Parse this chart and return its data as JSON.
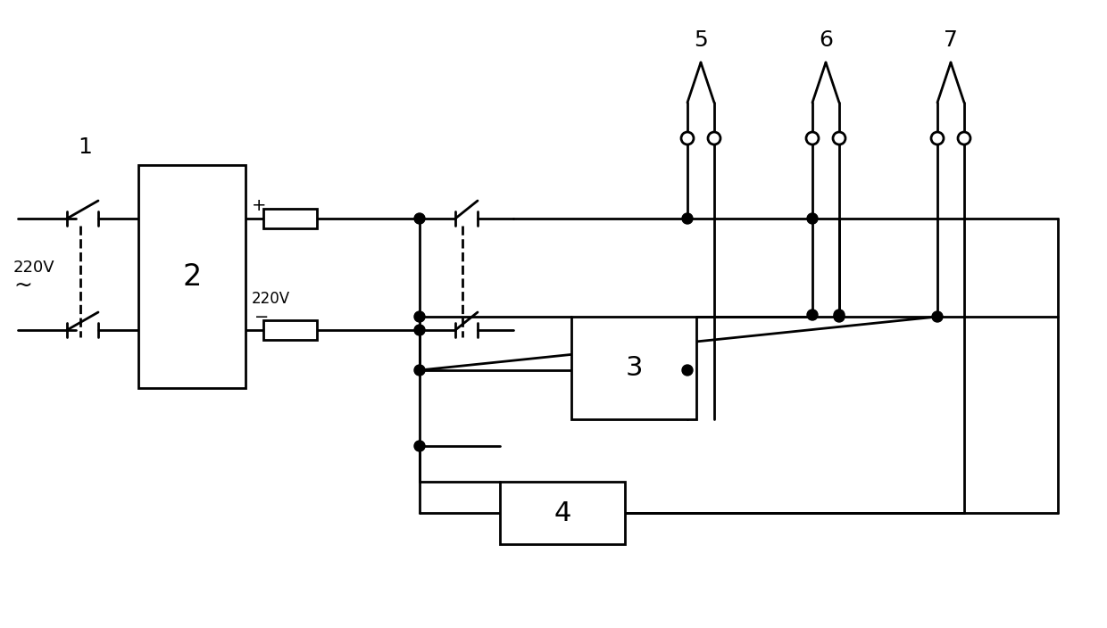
{
  "bg_color": "#ffffff",
  "line_color": "#000000",
  "lw": 2.0,
  "figsize": [
    12.4,
    7.04
  ],
  "dpi": 100
}
